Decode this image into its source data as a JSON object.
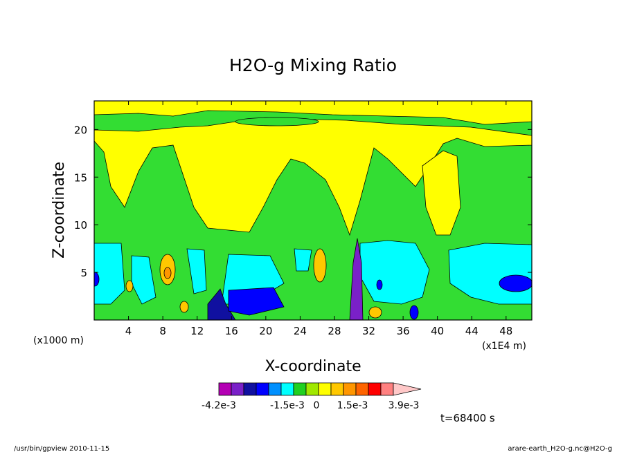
{
  "chart_data": {
    "type": "heatmap",
    "title": "H2O-g Mixing Ratio",
    "xlabel": "X-coordinate",
    "ylabel": "Z-coordinate",
    "x_unit_left": "(x1000 m)",
    "x_unit_right": "(x1E4 m)",
    "xlim": [
      0,
      51
    ],
    "ylim": [
      0,
      23
    ],
    "x_ticks": [
      4,
      8,
      12,
      16,
      20,
      24,
      28,
      32,
      36,
      40,
      44,
      48
    ],
    "y_ticks": [
      5,
      10,
      15,
      20
    ],
    "time_label": "t=68400 s",
    "colorbar": {
      "labels": [
        "-4.2e-3",
        "-1.5e-3",
        "0",
        "1.5e-3",
        "3.9e-3"
      ],
      "colors": [
        "#b400b4",
        "#7a20c8",
        "#1010a0",
        "#0000ff",
        "#0090ff",
        "#00ffff",
        "#20d020",
        "#a0e800",
        "#ffff00",
        "#ffc800",
        "#ff9600",
        "#ff6400",
        "#ff0000",
        "#ff8080",
        "#ffc8c8"
      ]
    },
    "field_colors": {
      "yellow": "#ffff00",
      "green": "#33dd33",
      "cyan": "#00ffff",
      "blue": "#0000ff",
      "navy": "#1010a0",
      "purple": "#7a20c8",
      "orange": "#ffc800",
      "dark_orange": "#ff9600"
    }
  },
  "footer": {
    "left": "/usr/bin/gpview 2010-11-15",
    "right": "arare-earth_H2O-g.nc@H2O-g"
  }
}
